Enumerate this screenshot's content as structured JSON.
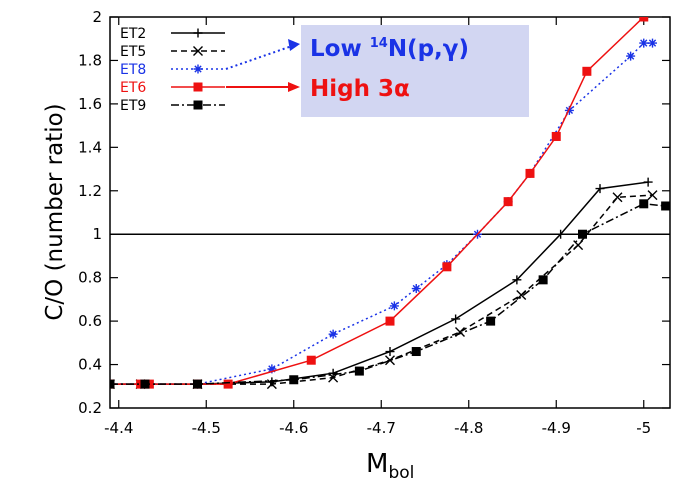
{
  "chart_data": {
    "type": "line",
    "title": "",
    "xlabel": "M",
    "xlabel_sub": "bol",
    "ylabel": "C/O (number ratio)",
    "xlim": [
      -4.39,
      -5.03
    ],
    "ylim": [
      0.2,
      2.0
    ],
    "xticks": [
      -4.4,
      -4.5,
      -4.6,
      -4.7,
      -4.8,
      -4.9,
      -5.0
    ],
    "xtick_labels": [
      "-4.4",
      "-4.5",
      "-4.6",
      "-4.7",
      "-4.8",
      "-4.9",
      "-5"
    ],
    "yticks": [
      0.2,
      0.4,
      0.6,
      0.8,
      1.0,
      1.2,
      1.4,
      1.6,
      1.8,
      2.0
    ],
    "ytick_labels": [
      "0.2",
      "0.4",
      "0.6",
      "0.8",
      "1",
      "1.2",
      "1.4",
      "1.6",
      "1.8",
      "2"
    ],
    "reference_line": 1.0,
    "series": [
      {
        "name": "ET2",
        "color": "#000000",
        "dash": "solid",
        "marker": "plus",
        "x": [
          -4.39,
          -4.425,
          -4.49,
          -4.575,
          -4.645,
          -4.71,
          -4.785,
          -4.855,
          -4.905,
          -4.95,
          -5.005
        ],
        "y": [
          0.31,
          0.31,
          0.31,
          0.32,
          0.36,
          0.46,
          0.61,
          0.79,
          1.0,
          1.21,
          1.24
        ]
      },
      {
        "name": "ET5",
        "color": "#000000",
        "dash": "dashed",
        "marker": "cross",
        "x": [
          -4.39,
          -4.425,
          -4.49,
          -4.575,
          -4.645,
          -4.71,
          -4.79,
          -4.86,
          -4.925,
          -4.97,
          -5.01
        ],
        "y": [
          0.31,
          0.31,
          0.31,
          0.31,
          0.34,
          0.42,
          0.55,
          0.72,
          0.95,
          1.17,
          1.18
        ]
      },
      {
        "name": "ET8",
        "color": "#1a33e6",
        "dash": "dotted",
        "marker": "asterisk",
        "x": [
          -4.39,
          -4.425,
          -4.49,
          -4.575,
          -4.645,
          -4.715,
          -4.74,
          -4.775,
          -4.81,
          -4.845,
          -4.87,
          -4.915,
          -4.985,
          -5.0,
          -5.01
        ],
        "y": [
          0.31,
          0.31,
          0.31,
          0.38,
          0.54,
          0.67,
          0.75,
          0.86,
          1.0,
          1.15,
          1.28,
          1.57,
          1.82,
          1.88,
          1.88
        ]
      },
      {
        "name": "ET6",
        "color": "#ee1111",
        "dash": "solid",
        "marker": "square",
        "x": [
          -4.39,
          -4.425,
          -4.435,
          -4.49,
          -4.525,
          -4.62,
          -4.71,
          -4.775,
          -4.845,
          -4.87,
          -4.9,
          -4.935,
          -5.0
        ],
        "y": [
          0.31,
          0.31,
          0.31,
          0.31,
          0.31,
          0.42,
          0.6,
          0.85,
          1.15,
          1.28,
          1.45,
          1.75,
          2.0
        ]
      },
      {
        "name": "ET9",
        "color": "#000000",
        "dash": "dashdot",
        "marker": "filled-square",
        "x": [
          -4.39,
          -4.43,
          -4.49,
          -4.6,
          -4.675,
          -4.74,
          -4.825,
          -4.885,
          -4.93,
          -5.0,
          -5.025
        ],
        "y": [
          0.31,
          0.31,
          0.31,
          0.33,
          0.37,
          0.46,
          0.6,
          0.79,
          1.0,
          1.14,
          1.13
        ]
      }
    ],
    "annotations": [
      {
        "text": "Low ",
        "super": "14",
        "rest": "N(p,γ)",
        "color": "#1a33e6",
        "points_to": "ET8"
      },
      {
        "text": "High 3α",
        "color": "#ee1111",
        "points_to": "ET6"
      }
    ]
  }
}
